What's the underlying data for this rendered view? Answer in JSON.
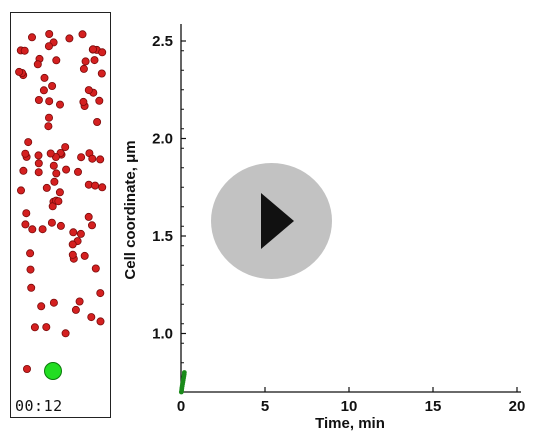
{
  "player": {
    "timestamp": "00:12",
    "play_icon": "play-icon",
    "overlay_color": "#b4b4b4"
  },
  "simulation": {
    "particle_color": "#d42020",
    "particle_stroke": "#7a0a0a",
    "cell_color": "#22dd22",
    "cell_stroke": "#0a7a0a"
  },
  "chart_data": {
    "type": "scatter",
    "title": "",
    "xlabel": "Time, min",
    "ylabel": "Cell coordinate, μm",
    "xlim": [
      0,
      20
    ],
    "ylim": [
      0.5,
      2.6
    ],
    "xticks": [
      0,
      5,
      10,
      15,
      20
    ],
    "yticks": [
      1.0,
      1.5,
      2.0,
      2.5
    ],
    "xtick_labels": [
      "0",
      "5",
      "10",
      "15",
      "20"
    ],
    "ytick_labels": [
      "1.0",
      "1.5",
      "2.0",
      "2.5"
    ],
    "grid": false,
    "series": [
      {
        "color": "#1a8a1a",
        "points": [
          [
            0.02,
            0.7
          ],
          [
            0.04,
            0.71
          ],
          [
            0.05,
            0.72
          ],
          [
            0.07,
            0.73
          ],
          [
            0.09,
            0.74
          ],
          [
            0.11,
            0.75
          ],
          [
            0.13,
            0.76
          ],
          [
            0.15,
            0.77
          ],
          [
            0.17,
            0.78
          ],
          [
            0.19,
            0.79
          ],
          [
            0.2,
            0.8
          ]
        ]
      }
    ]
  }
}
